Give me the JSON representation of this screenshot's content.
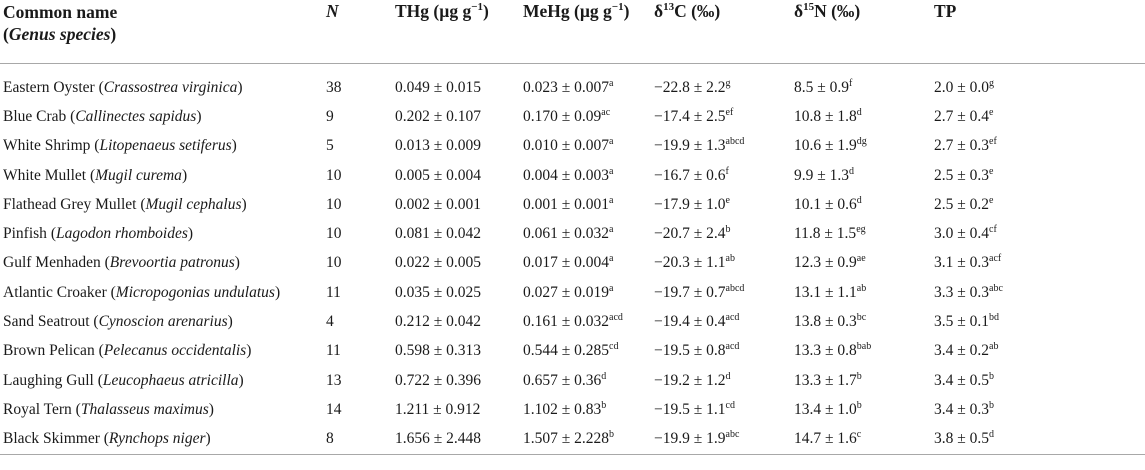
{
  "header": {
    "common_name": "Common name",
    "genus_species": "(Genus species)",
    "n": "N",
    "thg": "THg (µg g",
    "thg_exp": "−1",
    "thg_close": ")",
    "mehg": "MeHg (µg g",
    "mehg_exp": "−1",
    "mehg_close": ")",
    "d13c_delta": "δ",
    "d13c_sup": "13",
    "d13c_rest": "C (‰)",
    "d15n_delta": "δ",
    "d15n_sup": "15",
    "d15n_rest": "N (‰)",
    "tp": "TP"
  },
  "rows": [
    {
      "name": "Eastern Oyster",
      "species": "Crassostrea virginica",
      "n": "38",
      "thg": "0.049 ± 0.015",
      "mehg": "0.023 ± 0.007",
      "mehg_sup": "a",
      "c13": "−22.8 ± 2.2",
      "c13_sup": "g",
      "n15": "8.5 ± 0.9",
      "n15_sup": "f",
      "tp": "2.0 ± 0.0",
      "tp_sup": "g"
    },
    {
      "name": "Blue Crab",
      "species": "Callinectes sapidus",
      "n": "9",
      "thg": "0.202 ± 0.107",
      "mehg": "0.170 ± 0.09",
      "mehg_sup": "ac",
      "c13": "−17.4 ± 2.5",
      "c13_sup": "ef",
      "n15": "10.8 ± 1.8",
      "n15_sup": "d",
      "tp": "2.7 ± 0.4",
      "tp_sup": "e"
    },
    {
      "name": "White Shrimp",
      "species": "Litopenaeus setiferus",
      "n": "5",
      "thg": "0.013 ± 0.009",
      "mehg": "0.010 ± 0.007",
      "mehg_sup": "a",
      "c13": "−19.9 ± 1.3",
      "c13_sup": "abcd",
      "n15": "10.6 ± 1.9",
      "n15_sup": "dg",
      "tp": "2.7 ± 0.3",
      "tp_sup": "ef"
    },
    {
      "name": "White Mullet",
      "species": "Mugil curema",
      "n": "10",
      "thg": "0.005 ± 0.004",
      "mehg": "0.004 ± 0.003",
      "mehg_sup": "a",
      "c13": "−16.7 ± 0.6",
      "c13_sup": "f",
      "n15": "9.9 ± 1.3",
      "n15_sup": "d",
      "tp": "2.5 ± 0.3",
      "tp_sup": "e"
    },
    {
      "name": "Flathead Grey Mullet",
      "species": "Mugil cephalus",
      "n": "10",
      "thg": "0.002 ± 0.001",
      "mehg": "0.001 ± 0.001",
      "mehg_sup": "a",
      "c13": "−17.9 ± 1.0",
      "c13_sup": "e",
      "n15": "10.1 ± 0.6",
      "n15_sup": "d",
      "tp": "2.5 ± 0.2",
      "tp_sup": "e"
    },
    {
      "name": "Pinfish",
      "species": "Lagodon rhomboides",
      "n": "10",
      "thg": "0.081 ± 0.042",
      "mehg": "0.061 ± 0.032",
      "mehg_sup": "a",
      "c13": "−20.7 ± 2.4",
      "c13_sup": "b",
      "n15": "11.8 ± 1.5",
      "n15_sup": "eg",
      "tp": "3.0 ± 0.4",
      "tp_sup": "cf"
    },
    {
      "name": "Gulf Menhaden",
      "species": "Brevoortia patronus",
      "n": "10",
      "thg": "0.022 ± 0.005",
      "mehg": "0.017 ± 0.004",
      "mehg_sup": "a",
      "c13": "−20.3 ± 1.1",
      "c13_sup": "ab",
      "n15": "12.3 ± 0.9",
      "n15_sup": "ae",
      "tp": "3.1 ± 0.3",
      "tp_sup": "acf"
    },
    {
      "name": "Atlantic Croaker",
      "species": "Micropogonias undulatus",
      "n": "11",
      "thg": "0.035 ± 0.025",
      "mehg": "0.027 ± 0.019",
      "mehg_sup": "a",
      "c13": "−19.7 ± 0.7",
      "c13_sup": "abcd",
      "n15": "13.1 ± 1.1",
      "n15_sup": "ab",
      "tp": "3.3 ± 0.3",
      "tp_sup": "abc"
    },
    {
      "name": "Sand Seatrout",
      "species": "Cynoscion arenarius",
      "n": "4",
      "thg": "0.212 ± 0.042",
      "mehg": "0.161 ± 0.032",
      "mehg_sup": "acd",
      "c13": "−19.4 ± 0.4",
      "c13_sup": "acd",
      "n15": "13.8 ± 0.3",
      "n15_sup": "bc",
      "tp": "3.5 ± 0.1",
      "tp_sup": "bd"
    },
    {
      "name": "Brown Pelican",
      "species": "Pelecanus occidentalis",
      "n": "11",
      "thg": "0.598 ± 0.313",
      "mehg": "0.544 ± 0.285",
      "mehg_sup": "cd",
      "c13": "−19.5 ± 0.8",
      "c13_sup": "acd",
      "n15": "13.3 ± 0.8",
      "n15_sup": "bab",
      "tp": "3.4 ± 0.2",
      "tp_sup": "ab"
    },
    {
      "name": "Laughing Gull",
      "species": "Leucophaeus atricilla",
      "n": "13",
      "thg": "0.722 ± 0.396",
      "mehg": "0.657 ± 0.36",
      "mehg_sup": "d",
      "c13": "−19.2 ± 1.2",
      "c13_sup": "d",
      "n15": "13.3 ± 1.7",
      "n15_sup": "b",
      "tp": "3.4 ± 0.5",
      "tp_sup": "b"
    },
    {
      "name": "Royal Tern",
      "species": "Thalasseus maximus",
      "n": "14",
      "thg": "1.211 ± 0.912",
      "mehg": "1.102 ± 0.83",
      "mehg_sup": "b",
      "c13": "−19.5 ± 1.1",
      "c13_sup": "cd",
      "n15": "13.4 ± 1.0",
      "n15_sup": "b",
      "tp": "3.4 ± 0.3",
      "tp_sup": "b"
    },
    {
      "name": "Black Skimmer",
      "species": "Rynchops niger",
      "n": "8",
      "thg": "1.656 ± 2.448",
      "mehg": "1.507 ± 2.228",
      "mehg_sup": "b",
      "c13": "−19.9 ± 1.9",
      "c13_sup": "abc",
      "n15": "14.7 ± 1.6",
      "n15_sup": "c",
      "tp": "3.8 ± 0.5",
      "tp_sup": "d"
    }
  ]
}
